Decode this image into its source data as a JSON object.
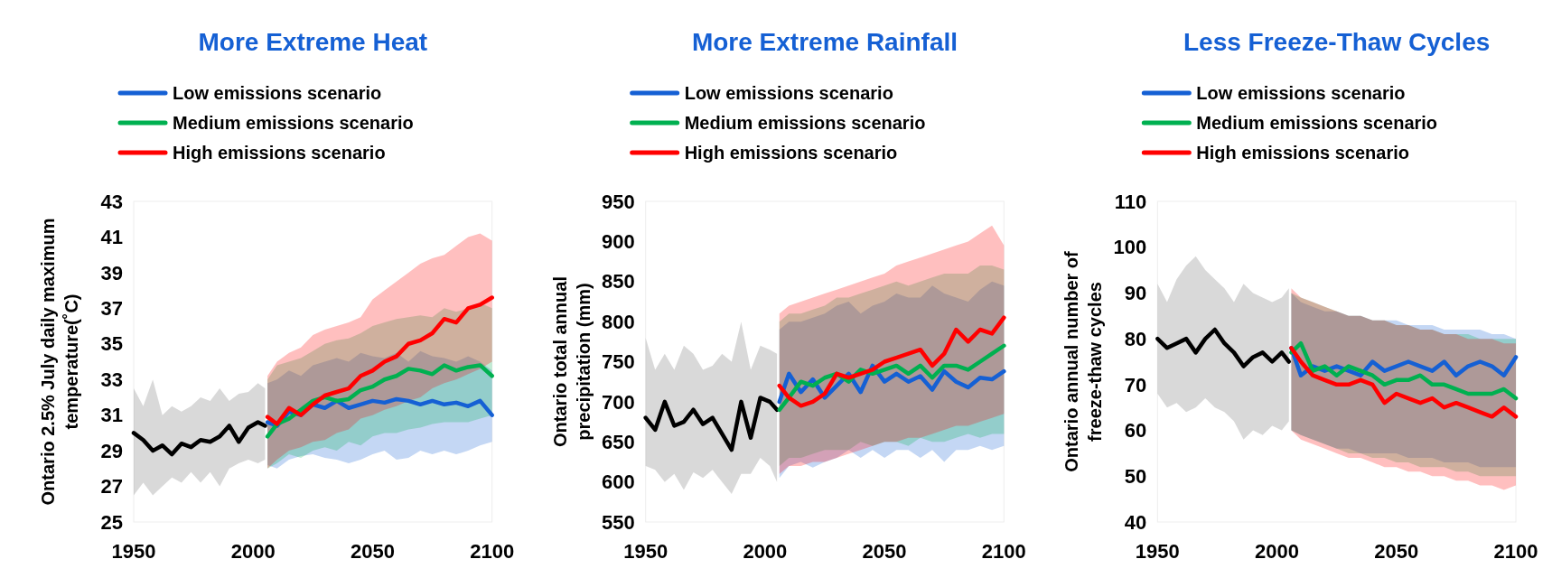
{
  "chart_data": [
    {
      "type": "line",
      "title": "More Extreme Heat",
      "ylabel": "Ontario 2.5% July daily maximum temperature(˚C)",
      "xlim": [
        1950,
        2100
      ],
      "xticks": [
        1950,
        2000,
        2050,
        2100
      ],
      "ylim": [
        25,
        43
      ],
      "yticks": [
        25,
        27,
        29,
        31,
        33,
        35,
        37,
        39,
        41,
        43
      ],
      "legend": "top",
      "grid": false,
      "marker": "none",
      "line_style": "solid",
      "series": [
        {
          "color": "#000000",
          "x": [
            1950,
            1954,
            1958,
            1962,
            1966,
            1970,
            1974,
            1978,
            1982,
            1986,
            1990,
            1994,
            1998,
            2002,
            2005
          ],
          "values": [
            30.0,
            29.6,
            29.0,
            29.3,
            28.8,
            29.4,
            29.2,
            29.6,
            29.5,
            29.8,
            30.4,
            29.5,
            30.3,
            30.6,
            30.4
          ],
          "lower": [
            26.5,
            27.2,
            26.5,
            27.0,
            27.5,
            27.2,
            27.8,
            27.2,
            27.8,
            27.0,
            28.0,
            28.3,
            28.5,
            28.3,
            28.5
          ],
          "upper": [
            32.5,
            31.5,
            33.0,
            31.0,
            31.5,
            31.2,
            31.5,
            32.0,
            31.8,
            32.5,
            31.8,
            32.2,
            32.3,
            32.8,
            32.5
          ]
        },
        {
          "name": "Low emissions scenario",
          "color": "#1560d4",
          "x": [
            2006,
            2010,
            2015,
            2020,
            2025,
            2030,
            2035,
            2040,
            2045,
            2050,
            2055,
            2060,
            2065,
            2070,
            2075,
            2080,
            2085,
            2090,
            2095,
            2100
          ],
          "values": [
            30.6,
            30.4,
            31.2,
            31.0,
            31.6,
            31.4,
            31.8,
            31.4,
            31.6,
            31.8,
            31.7,
            31.9,
            31.8,
            31.6,
            31.8,
            31.6,
            31.7,
            31.5,
            31.8,
            31.0
          ],
          "lower": [
            28.2,
            28.0,
            28.5,
            28.7,
            28.8,
            28.6,
            28.5,
            28.3,
            28.5,
            28.8,
            29.0,
            28.5,
            28.6,
            29.0,
            28.8,
            29.0,
            28.8,
            29.0,
            29.3,
            29.5
          ],
          "upper": [
            32.8,
            33.0,
            33.5,
            33.2,
            33.8,
            34.0,
            34.2,
            34.0,
            34.5,
            34.3,
            34.2,
            34.5,
            34.0,
            34.6,
            34.3,
            34.2,
            34.0,
            34.3,
            34.0,
            33.5
          ]
        },
        {
          "name": "Medium emissions scenario",
          "color": "#00b050",
          "x": [
            2006,
            2010,
            2015,
            2020,
            2025,
            2030,
            2035,
            2040,
            2045,
            2050,
            2055,
            2060,
            2065,
            2070,
            2075,
            2080,
            2085,
            2090,
            2095,
            2100
          ],
          "values": [
            29.8,
            30.5,
            30.8,
            31.3,
            31.8,
            32.0,
            31.8,
            31.9,
            32.4,
            32.6,
            33.0,
            33.2,
            33.6,
            33.5,
            33.3,
            33.8,
            33.5,
            33.7,
            33.8,
            33.2
          ],
          "lower": [
            28.0,
            28.3,
            28.8,
            28.6,
            29.0,
            29.2,
            29.0,
            29.5,
            29.3,
            29.8,
            30.0,
            30.0,
            30.2,
            30.3,
            30.5,
            30.6,
            30.6,
            30.6,
            30.8,
            31.0
          ],
          "upper": [
            33.0,
            33.8,
            34.0,
            34.2,
            34.6,
            35.0,
            35.2,
            35.3,
            35.6,
            36.0,
            36.2,
            36.4,
            36.5,
            36.6,
            36.5,
            37.0,
            36.8,
            37.0,
            37.3,
            37.0
          ]
        },
        {
          "name": "High emissions scenario",
          "color": "#ff0000",
          "x": [
            2006,
            2010,
            2015,
            2020,
            2025,
            2030,
            2035,
            2040,
            2045,
            2050,
            2055,
            2060,
            2065,
            2070,
            2075,
            2080,
            2085,
            2090,
            2095,
            2100
          ],
          "values": [
            30.9,
            30.5,
            31.4,
            31.0,
            31.6,
            32.1,
            32.3,
            32.5,
            33.2,
            33.5,
            34.0,
            34.3,
            35.0,
            35.2,
            35.6,
            36.4,
            36.2,
            37.0,
            37.2,
            37.6
          ],
          "lower": [
            28.0,
            28.5,
            29.0,
            29.2,
            29.5,
            29.6,
            30.0,
            30.2,
            30.8,
            31.0,
            31.3,
            31.5,
            31.8,
            32.0,
            32.5,
            32.8,
            33.0,
            33.3,
            33.6,
            34.0
          ],
          "upper": [
            33.2,
            34.0,
            34.5,
            34.8,
            35.5,
            35.8,
            36.0,
            36.2,
            36.5,
            37.5,
            38.0,
            38.5,
            39.0,
            39.5,
            39.8,
            40.0,
            40.5,
            41.0,
            41.2,
            40.8
          ]
        }
      ]
    },
    {
      "type": "line",
      "title": "More Extreme Rainfall",
      "ylabel": "Ontario total annual precipitation (mm)",
      "xlim": [
        1950,
        2100
      ],
      "xticks": [
        1950,
        2000,
        2050,
        2100
      ],
      "ylim": [
        550,
        950
      ],
      "yticks": [
        550,
        600,
        650,
        700,
        750,
        800,
        850,
        900,
        950
      ],
      "legend": "top",
      "grid": false,
      "marker": "none",
      "line_style": "solid",
      "series": [
        {
          "color": "#000000",
          "x": [
            1950,
            1954,
            1958,
            1962,
            1966,
            1970,
            1974,
            1978,
            1982,
            1986,
            1990,
            1994,
            1998,
            2002,
            2005
          ],
          "values": [
            680,
            665,
            700,
            670,
            675,
            690,
            672,
            680,
            660,
            640,
            700,
            655,
            705,
            700,
            690
          ],
          "lower": [
            620,
            615,
            600,
            610,
            590,
            612,
            605,
            615,
            600,
            585,
            610,
            610,
            630,
            620,
            600
          ],
          "upper": [
            780,
            740,
            760,
            740,
            770,
            760,
            740,
            745,
            760,
            750,
            800,
            740,
            770,
            765,
            760
          ]
        },
        {
          "name": "Low emissions scenario",
          "color": "#1560d4",
          "x": [
            2006,
            2010,
            2015,
            2020,
            2025,
            2030,
            2035,
            2040,
            2045,
            2050,
            2055,
            2060,
            2065,
            2070,
            2075,
            2080,
            2085,
            2090,
            2095,
            2100
          ],
          "values": [
            700,
            735,
            712,
            728,
            705,
            720,
            735,
            712,
            745,
            725,
            735,
            725,
            732,
            715,
            738,
            725,
            718,
            730,
            728,
            738
          ],
          "lower": [
            605,
            620,
            625,
            618,
            625,
            630,
            640,
            630,
            640,
            630,
            640,
            640,
            630,
            640,
            625,
            640,
            640,
            645,
            640,
            645
          ],
          "upper": [
            790,
            800,
            800,
            805,
            810,
            820,
            825,
            810,
            820,
            825,
            835,
            830,
            830,
            845,
            835,
            830,
            825,
            840,
            850,
            845
          ]
        },
        {
          "name": "Medium emissions scenario",
          "color": "#00b050",
          "x": [
            2006,
            2010,
            2015,
            2020,
            2025,
            2030,
            2035,
            2040,
            2045,
            2050,
            2055,
            2060,
            2065,
            2070,
            2075,
            2080,
            2085,
            2090,
            2095,
            2100
          ],
          "values": [
            690,
            705,
            725,
            720,
            730,
            735,
            725,
            740,
            735,
            740,
            745,
            735,
            745,
            730,
            745,
            745,
            740,
            750,
            760,
            770
          ],
          "lower": [
            620,
            630,
            630,
            635,
            640,
            640,
            640,
            650,
            645,
            650,
            650,
            645,
            655,
            650,
            650,
            655,
            660,
            655,
            660,
            660
          ],
          "upper": [
            800,
            810,
            810,
            815,
            820,
            830,
            830,
            835,
            840,
            845,
            850,
            845,
            850,
            855,
            860,
            860,
            860,
            870,
            870,
            865
          ]
        },
        {
          "name": "High emissions scenario",
          "color": "#ff0000",
          "x": [
            2006,
            2010,
            2015,
            2020,
            2025,
            2030,
            2035,
            2040,
            2045,
            2050,
            2055,
            2060,
            2065,
            2070,
            2075,
            2080,
            2085,
            2090,
            2095,
            2100
          ],
          "values": [
            720,
            705,
            695,
            700,
            710,
            735,
            730,
            735,
            740,
            750,
            755,
            760,
            765,
            745,
            760,
            790,
            775,
            790,
            785,
            805
          ],
          "lower": [
            610,
            620,
            620,
            625,
            625,
            630,
            635,
            640,
            645,
            650,
            650,
            655,
            655,
            660,
            665,
            670,
            670,
            675,
            680,
            685
          ],
          "upper": [
            810,
            820,
            825,
            830,
            835,
            840,
            845,
            850,
            855,
            860,
            870,
            875,
            880,
            885,
            890,
            895,
            900,
            910,
            920,
            895
          ]
        }
      ]
    },
    {
      "type": "line",
      "title": "Less Freeze-Thaw Cycles",
      "ylabel": "Ontario annual number of freeze-thaw cycles",
      "xlim": [
        1950,
        2100
      ],
      "xticks": [
        1950,
        2000,
        2050,
        2100
      ],
      "ylim": [
        40,
        110
      ],
      "yticks": [
        40,
        50,
        60,
        70,
        80,
        90,
        100,
        110
      ],
      "legend": "top",
      "grid": false,
      "marker": "none",
      "line_style": "solid",
      "series": [
        {
          "color": "#000000",
          "x": [
            1950,
            1954,
            1958,
            1962,
            1966,
            1970,
            1974,
            1978,
            1982,
            1986,
            1990,
            1994,
            1998,
            2002,
            2005
          ],
          "values": [
            80,
            78,
            79,
            80,
            77,
            80,
            82,
            79,
            77,
            74,
            76,
            77,
            75,
            77,
            75
          ],
          "lower": [
            68,
            65,
            66,
            64,
            65,
            67,
            65,
            64,
            62,
            58,
            60,
            59,
            61,
            60,
            62
          ],
          "upper": [
            92,
            88,
            93,
            96,
            98,
            95,
            93,
            91,
            88,
            92,
            90,
            89,
            88,
            89,
            91
          ]
        },
        {
          "name": "Low emissions scenario",
          "color": "#1560d4",
          "x": [
            2006,
            2010,
            2015,
            2020,
            2025,
            2030,
            2035,
            2040,
            2045,
            2050,
            2055,
            2060,
            2065,
            2070,
            2075,
            2080,
            2085,
            2090,
            2095,
            2100
          ],
          "values": [
            78,
            72,
            74,
            73,
            74,
            73,
            72,
            75,
            73,
            74,
            75,
            74,
            73,
            75,
            72,
            74,
            75,
            74,
            72,
            76
          ],
          "lower": [
            60,
            59,
            58,
            57,
            56,
            56,
            55,
            55,
            55,
            55,
            54,
            54,
            54,
            53,
            53,
            53,
            52,
            52,
            52,
            52
          ],
          "upper": [
            90,
            88,
            87,
            86,
            86,
            85,
            85,
            84,
            84,
            84,
            83,
            83,
            83,
            82,
            82,
            82,
            82,
            81,
            81,
            80
          ]
        },
        {
          "name": "Medium emissions scenario",
          "color": "#00b050",
          "x": [
            2006,
            2010,
            2015,
            2020,
            2025,
            2030,
            2035,
            2040,
            2045,
            2050,
            2055,
            2060,
            2065,
            2070,
            2075,
            2080,
            2085,
            2090,
            2095,
            2100
          ],
          "values": [
            77,
            79,
            73,
            74,
            72,
            74,
            73,
            72,
            70,
            71,
            71,
            72,
            70,
            70,
            69,
            68,
            68,
            68,
            69,
            67
          ],
          "lower": [
            60,
            59,
            58,
            57,
            56,
            55,
            55,
            54,
            54,
            53,
            53,
            52,
            52,
            52,
            51,
            51,
            50,
            50,
            50,
            50
          ],
          "upper": [
            90,
            89,
            88,
            87,
            86,
            85,
            85,
            84,
            84,
            83,
            83,
            82,
            82,
            81,
            81,
            81,
            80,
            80,
            80,
            80
          ]
        },
        {
          "name": "High emissions scenario",
          "color": "#ff0000",
          "x": [
            2006,
            2010,
            2015,
            2020,
            2025,
            2030,
            2035,
            2040,
            2045,
            2050,
            2055,
            2060,
            2065,
            2070,
            2075,
            2080,
            2085,
            2090,
            2095,
            2100
          ],
          "values": [
            78,
            75,
            72,
            71,
            70,
            70,
            71,
            70,
            66,
            68,
            67,
            66,
            67,
            65,
            66,
            65,
            64,
            63,
            65,
            63
          ],
          "lower": [
            60,
            58,
            57,
            56,
            55,
            54,
            54,
            53,
            52,
            52,
            51,
            51,
            50,
            50,
            49,
            49,
            48,
            48,
            47,
            48
          ],
          "upper": [
            91,
            89,
            88,
            87,
            86,
            85,
            85,
            84,
            84,
            83,
            83,
            82,
            82,
            81,
            81,
            80,
            80,
            80,
            79,
            79
          ]
        }
      ]
    }
  ]
}
